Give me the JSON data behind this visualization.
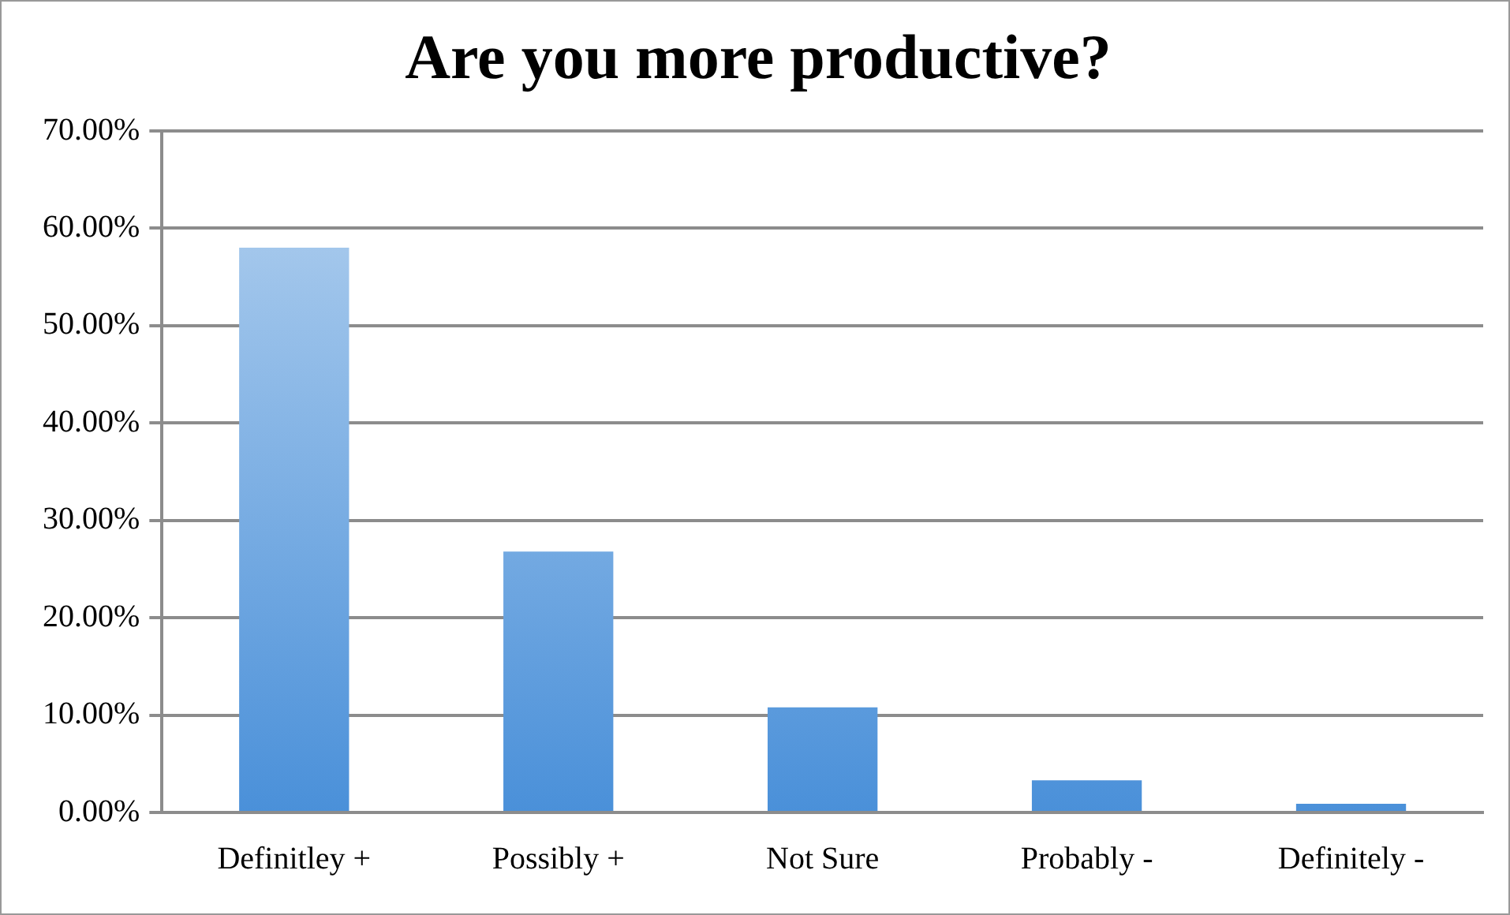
{
  "chart_data": {
    "type": "bar",
    "title": "Are you more productive?",
    "categories": [
      "Definitley +",
      "Possibly +",
      "Not Sure",
      "Probably -",
      "Definitely -"
    ],
    "values": [
      58.0,
      26.8,
      10.8,
      3.3,
      0.9
    ],
    "color": "#4a90d9",
    "ylim": [
      0,
      70
    ],
    "yticks": [
      {
        "value": 0,
        "label": "0.00%"
      },
      {
        "value": 10,
        "label": "10.00%"
      },
      {
        "value": 20,
        "label": "20.00%"
      },
      {
        "value": 30,
        "label": "30.00%"
      },
      {
        "value": 40,
        "label": "40.00%"
      },
      {
        "value": 50,
        "label": "50.00%"
      },
      {
        "value": 60,
        "label": "60.00%"
      },
      {
        "value": 70,
        "label": "70.00%"
      }
    ],
    "grid": "y",
    "legend": false
  }
}
